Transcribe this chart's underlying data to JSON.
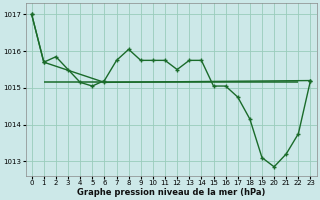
{
  "title": "Graphe pression niveau de la mer (hPa)",
  "bg_color": "#cce8e8",
  "grid_color": "#99ccbb",
  "line_color": "#1a6b2a",
  "xlim": [
    -0.5,
    23.5
  ],
  "ylim": [
    1012.6,
    1017.3
  ],
  "yticks": [
    1013,
    1014,
    1015,
    1016,
    1017
  ],
  "xticks": [
    0,
    1,
    2,
    3,
    4,
    5,
    6,
    7,
    8,
    9,
    10,
    11,
    12,
    13,
    14,
    15,
    16,
    17,
    18,
    19,
    20,
    21,
    22,
    23
  ],
  "series1_x": [
    0,
    1,
    2,
    3,
    4,
    5,
    6,
    7,
    8,
    9,
    10,
    11,
    12,
    13,
    14,
    15,
    16,
    17,
    18,
    19,
    20,
    21,
    22,
    23
  ],
  "series1_y": [
    1017.0,
    1015.7,
    1015.85,
    1015.5,
    1015.15,
    1015.05,
    1015.2,
    1015.75,
    1016.05,
    1015.75,
    1015.75,
    1015.75,
    1015.5,
    1015.75,
    1015.75,
    1015.05,
    1015.05,
    1014.75,
    1014.15,
    1013.1,
    1012.85,
    1013.2,
    1013.75,
    1015.2
  ],
  "series2_x": [
    0,
    1,
    6,
    23
  ],
  "series2_y": [
    1017.0,
    1015.7,
    1015.15,
    1015.2
  ],
  "hline_y": 1015.15,
  "hline_x_start": 1,
  "hline_x_end": 22,
  "title_fontsize": 6,
  "tick_fontsize": 5
}
